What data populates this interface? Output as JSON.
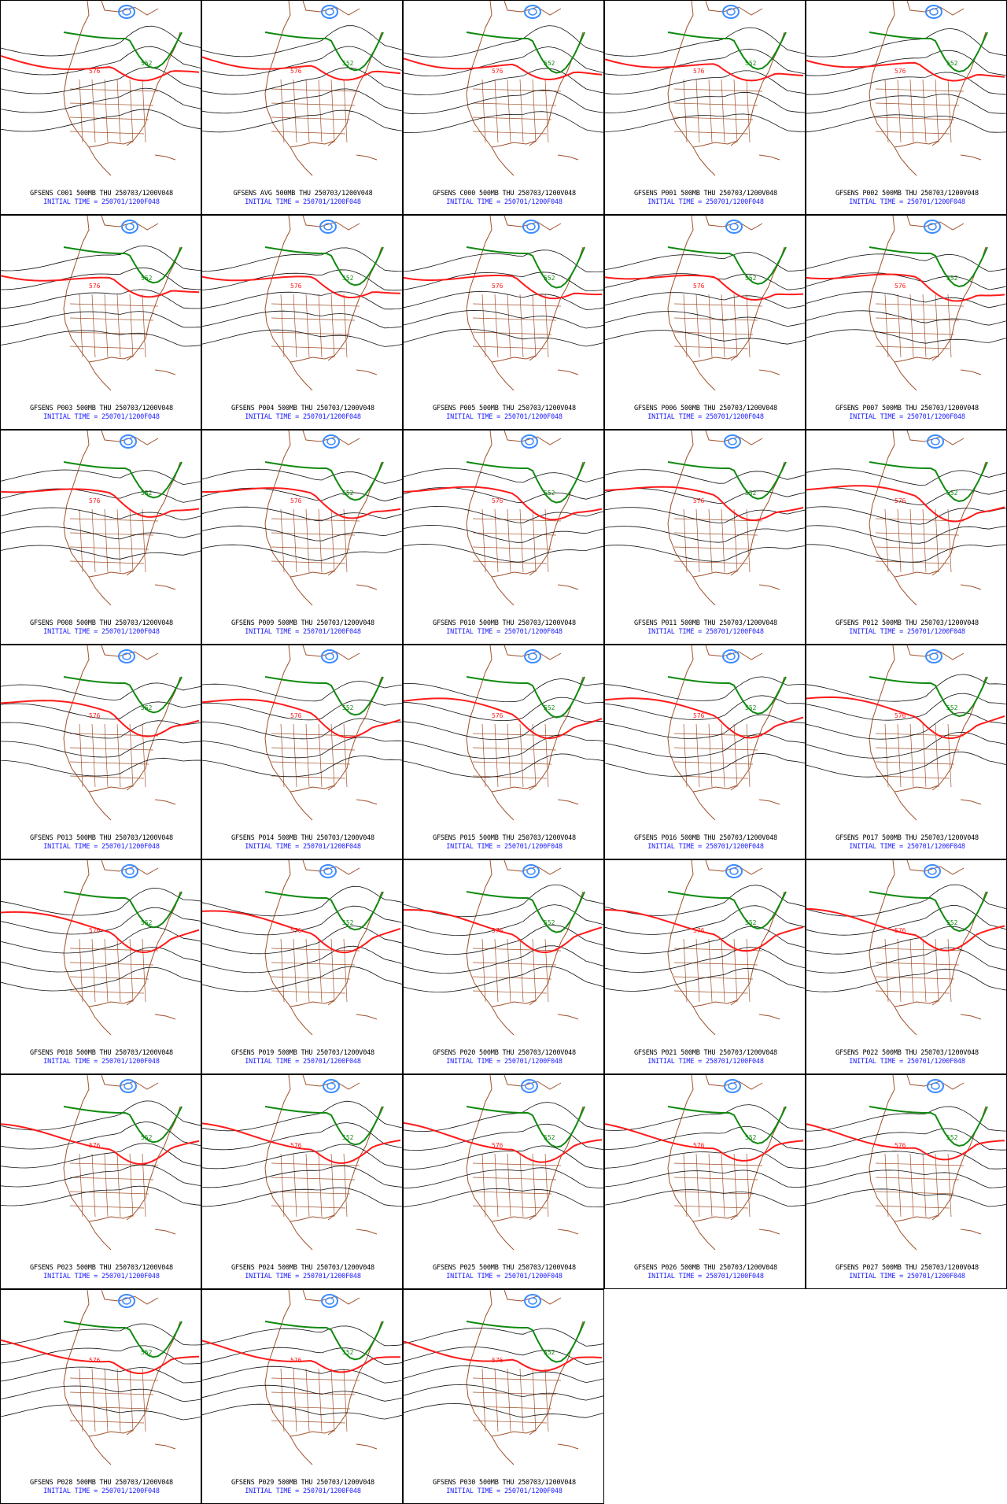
{
  "colors": {
    "coast": "#a0522d",
    "contour": "#111111",
    "line_576": "#ff1a1a",
    "line_552": "#108a10",
    "low": "#3c8cff",
    "title": "#000000",
    "init": "#1a1aff"
  },
  "contour_labels": {
    "red": "576",
    "green": "552"
  },
  "panels": [
    {
      "title": "GFSENS C001 500MB THU 250703/1200V048",
      "init": "INITIAL TIME = 250701/1200F048"
    },
    {
      "title": "GFSENS AVG 500MB THU 250703/1200V048",
      "init": "INITIAL TIME = 250701/1200F048"
    },
    {
      "title": "GFSENS C000 500MB THU 250703/1200V048",
      "init": "INITIAL TIME = 250701/1200F048"
    },
    {
      "title": "GFSENS P001 500MB THU 250703/1200V048",
      "init": "INITIAL TIME = 250701/1200F048"
    },
    {
      "title": "GFSENS P002 500MB THU 250703/1200V048",
      "init": "INITIAL TIME = 250701/1200F048"
    },
    {
      "title": "GFSENS P003 500MB THU 250703/1200V048",
      "init": "INITIAL TIME = 250701/1200F048"
    },
    {
      "title": "GFSENS P004 500MB THU 250703/1200V048",
      "init": "INITIAL TIME = 250701/1200F048"
    },
    {
      "title": "GFSENS P005 500MB THU 250703/1200V048",
      "init": "INITIAL TIME = 250701/1200F048"
    },
    {
      "title": "GFSENS P006 500MB THU 250703/1200V048",
      "init": "INITIAL TIME = 250701/1200F048"
    },
    {
      "title": "GFSENS P007 500MB THU 250703/1200V048",
      "init": "INITIAL TIME = 250701/1200F048"
    },
    {
      "title": "GFSENS P008 500MB THU 250703/1200V048",
      "init": "INITIAL TIME = 250701/1200F048"
    },
    {
      "title": "GFSENS P009 500MB THU 250703/1200V048",
      "init": "INITIAL TIME = 250701/1200F048"
    },
    {
      "title": "GFSENS P010 500MB THU 250703/1200V048",
      "init": "INITIAL TIME = 250701/1200F048"
    },
    {
      "title": "GFSENS P011 500MB THU 250703/1200V048",
      "init": "INITIAL TIME = 250701/1200F048"
    },
    {
      "title": "GFSENS P012 500MB THU 250703/1200V048",
      "init": "INITIAL TIME = 250701/1200F048"
    },
    {
      "title": "GFSENS P013 500MB THU 250703/1200V048",
      "init": "INITIAL TIME = 250701/1200F048"
    },
    {
      "title": "GFSENS P014 500MB THU 250703/1200V048",
      "init": "INITIAL TIME = 250701/1200F048"
    },
    {
      "title": "GFSENS P015 500MB THU 250703/1200V048",
      "init": "INITIAL TIME = 250701/1200F048"
    },
    {
      "title": "GFSENS P016 500MB THU 250703/1200V048",
      "init": "INITIAL TIME = 250701/1200F048"
    },
    {
      "title": "GFSENS P017 500MB THU 250703/1200V048",
      "init": "INITIAL TIME = 250701/1200F048"
    },
    {
      "title": "GFSENS P018 500MB THU 250703/1200V048",
      "init": "INITIAL TIME = 250701/1200F048"
    },
    {
      "title": "GFSENS P019 500MB THU 250703/1200V048",
      "init": "INITIAL TIME = 250701/1200F048"
    },
    {
      "title": "GFSENS P020 500MB THU 250703/1200V048",
      "init": "INITIAL TIME = 250701/1200F048"
    },
    {
      "title": "GFSENS P021 500MB THU 250703/1200V048",
      "init": "INITIAL TIME = 250701/1200F048"
    },
    {
      "title": "GFSENS P022 500MB THU 250703/1200V048",
      "init": "INITIAL TIME = 250701/1200F048"
    },
    {
      "title": "GFSENS P023 500MB THU 250703/1200V048",
      "init": "INITIAL TIME = 250701/1200F048"
    },
    {
      "title": "GFSENS P024 500MB THU 250703/1200V048",
      "init": "INITIAL TIME = 250701/1200F048"
    },
    {
      "title": "GFSENS P025 500MB THU 250703/1200V048",
      "init": "INITIAL TIME = 250701/1200F048"
    },
    {
      "title": "GFSENS P026 500MB THU 250703/1200V048",
      "init": "INITIAL TIME = 250701/1200F048"
    },
    {
      "title": "GFSENS P027 500MB THU 250703/1200V048",
      "init": "INITIAL TIME = 250701/1200F048"
    },
    {
      "title": "GFSENS P028 500MB THU 250703/1200V048",
      "init": "INITIAL TIME = 250701/1200F048"
    },
    {
      "title": "GFSENS P029 500MB THU 250703/1200V048",
      "init": "INITIAL TIME = 250701/1200F048"
    },
    {
      "title": "GFSENS P030 500MB THU 250703/1200V048",
      "init": "INITIAL TIME = 250701/1200F048"
    }
  ]
}
